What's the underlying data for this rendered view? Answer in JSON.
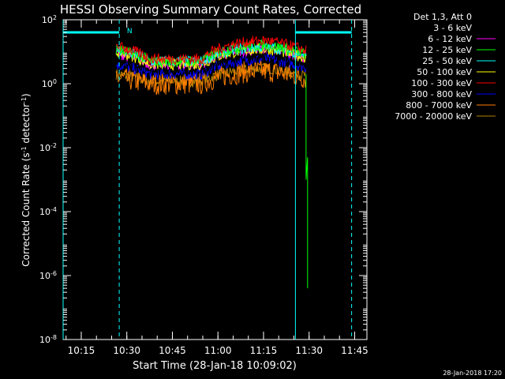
{
  "chart_data": {
    "type": "line",
    "title": "HESSI Observing Summary Count Rates, Corrected",
    "xlabel": "Start Time (28-Jan-18 10:09:02)",
    "ylabel": "Corrected Count Rate (s",
    "ylabel_sup": "-1",
    "ylabel_mid": " detector",
    "ylabel_sup2": "-1",
    "ylabel_end": ")",
    "y_scale": "log",
    "ylim": [
      1e-08,
      100
    ],
    "y_ticks": [
      {
        "value": 100,
        "base": "10",
        "exp": "2"
      },
      {
        "value": 1,
        "base": "10",
        "exp": "0"
      },
      {
        "value": 0.01,
        "base": "10",
        "exp": "-2"
      },
      {
        "value": 0.0001,
        "base": "10",
        "exp": "-4"
      },
      {
        "value": 1e-06,
        "base": "10",
        "exp": "-6"
      },
      {
        "value": 1e-08,
        "base": "10",
        "exp": "-8"
      }
    ],
    "x_start": "10:09:02",
    "x_end": "11:49:02",
    "x_ticks": [
      "10:15",
      "10:30",
      "10:45",
      "11:00",
      "11:15",
      "11:30",
      "11:45"
    ],
    "x_tick_minutes": [
      15,
      30,
      45,
      60,
      75,
      90,
      105
    ],
    "night_lines": [
      {
        "start": "10:09:02",
        "end": "10:27:30"
      },
      {
        "start": "11:25:30",
        "end": "11:44:00"
      }
    ],
    "flags": [
      {
        "label": "N",
        "at": "10:29:00"
      }
    ],
    "legend": {
      "header": "Det 1,3, Att 0",
      "placement": "outside-right"
    },
    "series": [
      {
        "name": "3 - 6 keV",
        "color": "#000000",
        "level": 6,
        "dip": 3,
        "hump": 8
      },
      {
        "name": "6 - 12 keV",
        "color": "#ff00ff",
        "level": 9,
        "dip": 4,
        "hump": 12
      },
      {
        "name": "12 - 25 keV",
        "color": "#00ff00",
        "level": 12,
        "dip": 5,
        "hump": 16
      },
      {
        "name": "25 - 50 keV",
        "color": "#00ffff",
        "level": 12,
        "dip": 5,
        "hump": 14
      },
      {
        "name": "50 - 100 keV",
        "color": "#ffff00",
        "level": 10,
        "dip": 4,
        "hump": 12
      },
      {
        "name": "100 - 300 keV",
        "color": "#ff0000",
        "level": 15,
        "dip": 6,
        "hump": 22
      },
      {
        "name": "300 - 800 keV",
        "color": "#0000ff",
        "level": 4,
        "dip": 2,
        "hump": 6
      },
      {
        "name": "800 - 7000 keV",
        "color": "#ff7f00",
        "level": 1.5,
        "dip": 1,
        "hump": 2.5
      },
      {
        "name": "7000 - 20000 keV",
        "color": "#b28000",
        "level": 2,
        "dip": 1.2,
        "hump": 3
      }
    ],
    "grid": false
  },
  "footer": {
    "timestamp": "28-Jan-2018 17:20"
  }
}
